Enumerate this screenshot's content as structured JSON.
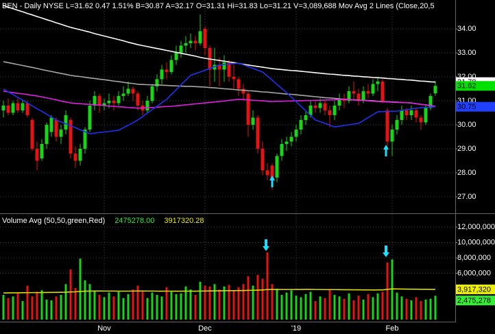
{
  "chart_data": [
    {
      "type": "candlestick",
      "title": "BEN - Daily NYSE L=31.62 0.47 1.51% B=30.87 A=32.17 O=31.31 Hi=31.83 Lo=31.21 V=3,089,688 Mov Avg 2 Lines (Close,20,5",
      "categories": [
        null,
        null,
        null,
        null,
        null,
        null,
        null,
        null,
        null,
        null,
        null,
        null,
        null,
        null,
        null,
        null,
        null,
        null,
        null,
        null,
        null,
        "Nov",
        null,
        null,
        null,
        null,
        null,
        null,
        null,
        null,
        null,
        null,
        null,
        null,
        null,
        null,
        null,
        null,
        null,
        null,
        null,
        null,
        "Dec",
        null,
        null,
        null,
        null,
        null,
        null,
        null,
        null,
        null,
        null,
        null,
        null,
        null,
        null,
        null,
        null,
        null,
        null,
        "'19",
        null,
        null,
        null,
        null,
        null,
        null,
        null,
        null,
        null,
        null,
        null,
        null,
        null,
        null,
        null,
        null,
        null,
        null,
        null,
        "Feb",
        null,
        null,
        null,
        null,
        null,
        null,
        null,
        null,
        null
      ],
      "open": [
        30.6,
        30.8,
        30.5,
        30.9,
        30.6,
        30.9,
        30.2,
        29.0,
        28.6,
        29.2,
        29.7,
        30.2,
        29.5,
        29.8,
        30.2,
        28.8,
        28.5,
        29.0,
        29.8,
        30.8,
        31.2,
        30.8,
        30.9,
        31.0,
        30.9,
        31.2,
        31.3,
        31.5,
        31.3,
        30.8,
        30.6,
        31.0,
        31.6,
        31.9,
        32.3,
        32.2,
        32.7,
        33.0,
        33.3,
        33.4,
        33.5,
        33.4,
        34.0,
        33.2,
        32.3,
        32.5,
        32.3,
        32.6,
        32.0,
        31.9,
        31.5,
        31.3,
        30.0,
        30.3,
        29.0,
        28.1,
        28.3,
        27.8,
        28.7,
        29.2,
        29.3,
        29.5,
        29.8,
        30.2,
        30.4,
        30.8,
        30.7,
        30.9,
        30.6,
        30.4,
        30.8,
        31.1,
        31.0,
        31.4,
        31.3,
        31.0,
        31.4,
        31.3,
        31.7,
        31.8,
        30.6,
        29.3,
        29.8,
        30.2,
        30.6,
        30.4,
        30.6,
        30.3,
        30.1,
        30.7,
        31.31
      ],
      "high": [
        31.0,
        31.1,
        31.0,
        31.1,
        31.0,
        31.0,
        30.3,
        29.3,
        29.4,
        30.1,
        30.4,
        30.3,
        30.0,
        30.6,
        30.3,
        29.1,
        29.2,
        29.9,
        31.0,
        31.4,
        31.3,
        31.1,
        31.3,
        31.2,
        31.4,
        31.6,
        31.8,
        31.6,
        31.4,
        31.0,
        31.2,
        31.7,
        32.1,
        32.5,
        32.6,
        32.9,
        33.3,
        33.5,
        33.7,
        33.8,
        33.7,
        34.6,
        34.1,
        33.3,
        33.2,
        32.8,
        32.9,
        32.7,
        32.5,
        32.0,
        31.7,
        31.4,
        30.6,
        30.4,
        29.3,
        28.4,
        28.4,
        28.8,
        29.4,
        29.5,
        29.7,
        30.0,
        30.4,
        30.6,
        31.0,
        31.0,
        31.1,
        31.0,
        30.8,
        31.0,
        31.3,
        31.3,
        31.6,
        31.8,
        31.5,
        31.6,
        31.7,
        31.9,
        32.0,
        31.9,
        30.7,
        30.0,
        30.4,
        30.8,
        30.7,
        30.8,
        30.7,
        30.4,
        30.8,
        31.3,
        31.83
      ],
      "low": [
        30.3,
        30.4,
        30.4,
        30.5,
        30.5,
        30.3,
        28.9,
        28.1,
        28.5,
        29.0,
        29.5,
        29.3,
        29.2,
        29.6,
        28.6,
        28.2,
        28.3,
        28.8,
        29.7,
        30.6,
        30.5,
        30.6,
        30.7,
        30.6,
        30.8,
        31.0,
        31.2,
        31.0,
        30.6,
        30.4,
        30.5,
        30.9,
        31.4,
        31.7,
        31.9,
        32.1,
        32.5,
        32.8,
        33.0,
        33.2,
        33.1,
        33.3,
        32.9,
        31.6,
        31.8,
        31.6,
        31.8,
        31.8,
        31.5,
        31.2,
        31.0,
        29.5,
        29.8,
        28.8,
        27.9,
        27.7,
        27.3,
        27.6,
        28.5,
        28.9,
        29.1,
        29.3,
        29.6,
        30.0,
        30.3,
        30.5,
        30.5,
        30.4,
        29.9,
        30.2,
        30.6,
        30.7,
        30.9,
        31.0,
        30.8,
        30.9,
        31.1,
        31.2,
        31.4,
        30.9,
        29.0,
        28.7,
        29.6,
        30.0,
        30.2,
        30.2,
        30.1,
        29.8,
        30.0,
        30.6,
        31.21
      ],
      "close": [
        30.8,
        30.5,
        30.9,
        30.6,
        30.9,
        30.4,
        29.0,
        28.5,
        29.2,
        30.0,
        30.3,
        29.5,
        29.8,
        30.4,
        28.8,
        28.5,
        29.0,
        29.8,
        30.8,
        31.2,
        30.8,
        30.9,
        31.0,
        30.9,
        31.2,
        31.3,
        31.5,
        31.3,
        30.8,
        30.6,
        31.0,
        31.6,
        31.9,
        32.3,
        32.2,
        32.7,
        33.0,
        33.3,
        33.4,
        33.5,
        33.4,
        33.9,
        33.2,
        32.3,
        32.5,
        32.3,
        32.6,
        32.0,
        31.9,
        31.5,
        31.3,
        30.0,
        30.3,
        29.0,
        28.1,
        27.9,
        27.7,
        28.7,
        29.2,
        29.3,
        29.5,
        29.8,
        30.2,
        30.4,
        30.8,
        30.7,
        30.9,
        30.6,
        30.4,
        30.8,
        31.1,
        31.0,
        31.4,
        31.3,
        31.0,
        31.4,
        31.3,
        31.7,
        31.8,
        31.0,
        29.3,
        29.8,
        30.2,
        30.6,
        30.4,
        30.6,
        30.3,
        30.1,
        30.7,
        31.2,
        31.62
      ],
      "up_color": "#19d419",
      "down_color": "#e41414",
      "ylim": [
        26.34,
        35.2
      ],
      "yticks": [
        {
          "value": 27,
          "label": "27.00"
        },
        {
          "value": 28,
          "label": "28.00"
        },
        {
          "value": 29,
          "label": "29.00"
        },
        {
          "value": 30,
          "label": "30.00"
        },
        {
          "value": 31,
          "label": "31.00"
        },
        {
          "value": 32,
          "label": "32.00"
        },
        {
          "value": 33,
          "label": "33.00"
        },
        {
          "value": 34,
          "label": "34.00"
        }
      ],
      "grid": true,
      "series": [
        {
          "color": "#ffffff",
          "values": [
            34.97,
            34.9,
            34.84,
            34.77,
            34.71,
            34.64,
            34.58,
            34.51,
            34.45,
            34.38,
            34.32,
            34.25,
            34.19,
            34.12,
            34.06,
            34.01,
            33.96,
            33.91,
            33.86,
            33.8,
            33.75,
            33.7,
            33.65,
            33.6,
            33.55,
            33.5,
            33.44,
            33.39,
            33.34,
            33.3,
            33.26,
            33.22,
            33.18,
            33.14,
            33.1,
            33.06,
            33.02,
            32.98,
            32.94,
            32.9,
            32.86,
            32.81,
            32.77,
            32.74,
            32.71,
            32.68,
            32.65,
            32.62,
            32.59,
            32.56,
            32.52,
            32.49,
            32.46,
            32.43,
            32.4,
            32.37,
            32.34,
            32.32,
            32.3,
            32.28,
            32.26,
            32.25,
            32.23,
            32.21,
            32.19,
            32.17,
            32.15,
            32.13,
            32.11,
            32.1,
            32.08,
            32.06,
            32.05,
            32.03,
            32.02,
            32.0,
            31.99,
            31.97,
            31.96,
            31.95,
            31.93,
            31.92,
            31.9,
            31.89,
            31.87,
            31.86,
            31.84,
            31.82,
            31.81,
            31.79,
            31.78
          ]
        },
        {
          "color": "#a8a8a8",
          "values": [
            32.63,
            32.59,
            32.55,
            32.51,
            32.47,
            32.43,
            32.39,
            32.35,
            32.3,
            32.26,
            32.22,
            32.18,
            32.14,
            32.1,
            32.06,
            32.03,
            32.01,
            31.98,
            31.95,
            31.93,
            31.9,
            31.88,
            31.85,
            31.82,
            31.8,
            31.77,
            31.74,
            31.72,
            31.69,
            31.68,
            31.67,
            31.66,
            31.66,
            31.65,
            31.64,
            31.63,
            31.62,
            31.61,
            31.6,
            31.6,
            31.59,
            31.58,
            31.57,
            31.55,
            31.54,
            31.52,
            31.5,
            31.49,
            31.47,
            31.45,
            31.44,
            31.42,
            31.41,
            31.39,
            31.37,
            31.36,
            31.34,
            31.32,
            31.3,
            31.28,
            31.27,
            31.25,
            31.23,
            31.21,
            31.19,
            31.17,
            31.15,
            31.13,
            31.12,
            31.1,
            31.08,
            31.06,
            31.05,
            31.04,
            31.03,
            31.02,
            31.01,
            31.0,
            30.98,
            30.97,
            30.96,
            30.95,
            30.94,
            30.93,
            30.92,
            30.91,
            30.88,
            30.85,
            30.83,
            30.8,
            30.77
          ]
        },
        {
          "color": "#e020e0",
          "values": [
            31.4,
            31.37,
            31.34,
            31.31,
            31.29,
            31.26,
            31.23,
            31.2,
            31.16,
            31.12,
            31.08,
            31.04,
            30.99,
            30.95,
            30.91,
            30.89,
            30.88,
            30.86,
            30.85,
            30.83,
            30.82,
            30.8,
            30.78,
            30.77,
            30.75,
            30.74,
            30.72,
            30.71,
            30.69,
            30.7,
            30.71,
            30.72,
            30.73,
            30.75,
            30.76,
            30.77,
            30.79,
            30.81,
            30.83,
            30.85,
            30.87,
            30.89,
            30.91,
            30.93,
            30.95,
            30.97,
            30.99,
            31.02,
            31.04,
            31.06,
            31.05,
            31.04,
            31.02,
            31.01,
            31.0,
            30.98,
            30.97,
            30.98,
            30.98,
            30.99,
            30.99,
            31.0,
            31.0,
            31.01,
            31.01,
            31.02,
            31.02,
            31.03,
            31.04,
            31.04,
            31.05,
            31.06,
            31.05,
            31.03,
            31.02,
            31.01,
            31.0,
            30.98,
            30.97,
            30.96,
            30.95,
            30.94,
            30.93,
            30.93,
            30.92,
            30.91,
            30.88,
            30.85,
            30.83,
            30.8,
            30.77
          ]
        },
        {
          "color": "#1e32f0",
          "values": [
            31.49,
            31.37,
            31.26,
            31.14,
            31.03,
            30.91,
            30.79,
            30.67,
            30.56,
            30.44,
            30.32,
            30.2,
            30.12,
            30.04,
            29.96,
            29.88,
            29.79,
            29.71,
            29.63,
            29.65,
            29.68,
            29.7,
            29.72,
            29.75,
            29.77,
            29.88,
            29.98,
            30.09,
            30.2,
            30.34,
            30.49,
            30.63,
            30.77,
            30.92,
            31.06,
            31.26,
            31.46,
            31.66,
            31.86,
            32.06,
            32.13,
            32.2,
            32.27,
            32.35,
            32.42,
            32.49,
            32.51,
            32.53,
            32.55,
            32.57,
            32.5,
            32.42,
            32.35,
            32.27,
            32.2,
            32.03,
            31.86,
            31.68,
            31.51,
            31.34,
            31.15,
            30.96,
            30.77,
            30.58,
            30.39,
            30.2,
            30.13,
            30.06,
            29.98,
            29.91,
            29.94,
            29.97,
            30.0,
            30.03,
            30.06,
            30.18,
            30.3,
            30.42,
            30.54,
            30.55,
            30.56,
            30.56,
            30.57,
            30.6,
            30.63,
            30.66,
            30.69,
            30.71,
            30.72,
            30.74,
            30.75
          ]
        }
      ],
      "last_labels": [
        {
          "value": 31.78,
          "label": "31.78",
          "color": "#ffffff"
        },
        {
          "value": 31.62,
          "label": "31.62",
          "color": "#00e000"
        },
        {
          "value": 30.75,
          "label": "30.75",
          "color": "#2040ff"
        }
      ]
    },
    {
      "type": "bar",
      "title": "Volume Avg (50,50,green,Red)",
      "legend": [
        {
          "label": "2475278.00",
          "color": "#33ee33"
        },
        {
          "label": "3917320.28",
          "color": "#eeee00"
        }
      ],
      "values": [
        3200000,
        2800000,
        3000000,
        3400000,
        2400000,
        4400000,
        3000000,
        3600000,
        3800000,
        2600000,
        2500000,
        3000000,
        3200000,
        4600000,
        6500000,
        4100000,
        7900000,
        5100000,
        4600000,
        3700000,
        3200000,
        2900000,
        3500000,
        3000000,
        3600000,
        2800000,
        3300000,
        3900000,
        4400000,
        3600000,
        2800000,
        3500000,
        3200000,
        3000000,
        4200000,
        3600000,
        3300000,
        3400000,
        4300000,
        3900000,
        3200000,
        4900000,
        4400000,
        4300000,
        4600000,
        3900000,
        4300000,
        4500000,
        3800000,
        4200000,
        4600000,
        5600000,
        4400000,
        5800000,
        5300000,
        8700000,
        4600000,
        4000000,
        3200000,
        3500000,
        3800000,
        3100000,
        2900000,
        3300000,
        3600000,
        2400000,
        3000000,
        2800000,
        3900000,
        3200000,
        3000000,
        2700000,
        3400000,
        2500000,
        3100000,
        2600000,
        3300000,
        2900000,
        3400000,
        3600000,
        7400000,
        7800000,
        3500000,
        3000000,
        2700000,
        2500000,
        2900000,
        2400000,
        2600000,
        2700000,
        3089688
      ],
      "ylim": [
        0,
        13690000
      ],
      "yticks": [
        {
          "value": 6000000,
          "label": "6,000,000"
        },
        {
          "value": 8000000,
          "label": "8,000,000"
        },
        {
          "value": 10000000,
          "label": "10,000,000"
        },
        {
          "value": 12000000,
          "label": "12,000,000"
        }
      ],
      "grid": true,
      "series": [
        {
          "color": "#dddd00",
          "values": [
            3450000,
            3460000,
            3470000,
            3470000,
            3480000,
            3490000,
            3500000,
            3500000,
            3510000,
            3520000,
            3530000,
            3530000,
            3540000,
            3550000,
            3580000,
            3600000,
            3650000,
            3680000,
            3700000,
            3710000,
            3710000,
            3700000,
            3700000,
            3700000,
            3690000,
            3690000,
            3690000,
            3700000,
            3710000,
            3710000,
            3700000,
            3700000,
            3690000,
            3680000,
            3690000,
            3690000,
            3680000,
            3680000,
            3690000,
            3690000,
            3680000,
            3700000,
            3710000,
            3720000,
            3730000,
            3730000,
            3740000,
            3750000,
            3750000,
            3760000,
            3760000,
            3790000,
            3800000,
            3820000,
            3840000,
            3900000,
            3910000,
            3910000,
            3900000,
            3900000,
            3900000,
            3910000,
            3910000,
            3920000,
            3920000,
            3900000,
            3900000,
            3890000,
            3890000,
            3890000,
            3880000,
            3870000,
            3870000,
            3860000,
            3860000,
            3850000,
            3850000,
            3840000,
            3850000,
            3850000,
            3920000,
            3980000,
            3970000,
            3960000,
            3950000,
            3940000,
            3940000,
            3930000,
            3930000,
            3920000,
            3917320
          ]
        }
      ],
      "last_labels": [
        {
          "value": 3917320,
          "label": "3,917,320",
          "color": "#eeee00"
        },
        {
          "value": 2475278,
          "label": "2,475,278",
          "color": "#33ee33"
        }
      ]
    }
  ]
}
